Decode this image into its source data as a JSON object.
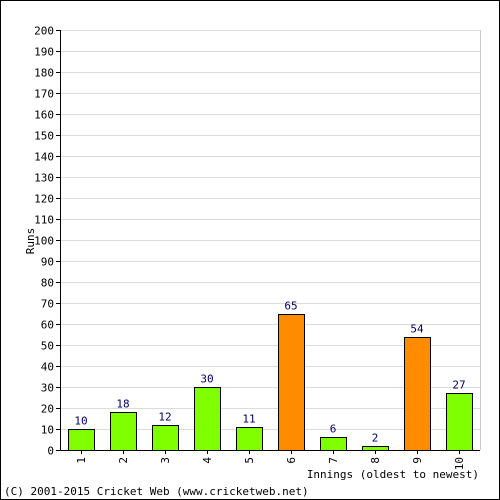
{
  "chart_data": {
    "type": "bar",
    "categories": [
      "1",
      "2",
      "3",
      "4",
      "5",
      "6",
      "7",
      "8",
      "9",
      "10"
    ],
    "values": [
      10,
      18,
      12,
      30,
      11,
      65,
      6,
      2,
      54,
      27
    ],
    "highlight": [
      false,
      false,
      false,
      false,
      false,
      true,
      false,
      false,
      true,
      false
    ],
    "colors": {
      "normal": "#80ff00",
      "highlight": "#ff8c00",
      "border": "#000000",
      "grid": "#dcdcdc",
      "label": "#000066"
    },
    "xlabel": "Innings (oldest to newest)",
    "ylabel": "Runs",
    "ylim": [
      0,
      200
    ],
    "yticks": [
      0,
      10,
      20,
      30,
      40,
      50,
      60,
      70,
      80,
      90,
      100,
      110,
      120,
      130,
      140,
      150,
      160,
      170,
      180,
      190,
      200
    ],
    "grid": true
  },
  "footer": "(C) 2001-2015 Cricket Web (www.cricketweb.net)"
}
